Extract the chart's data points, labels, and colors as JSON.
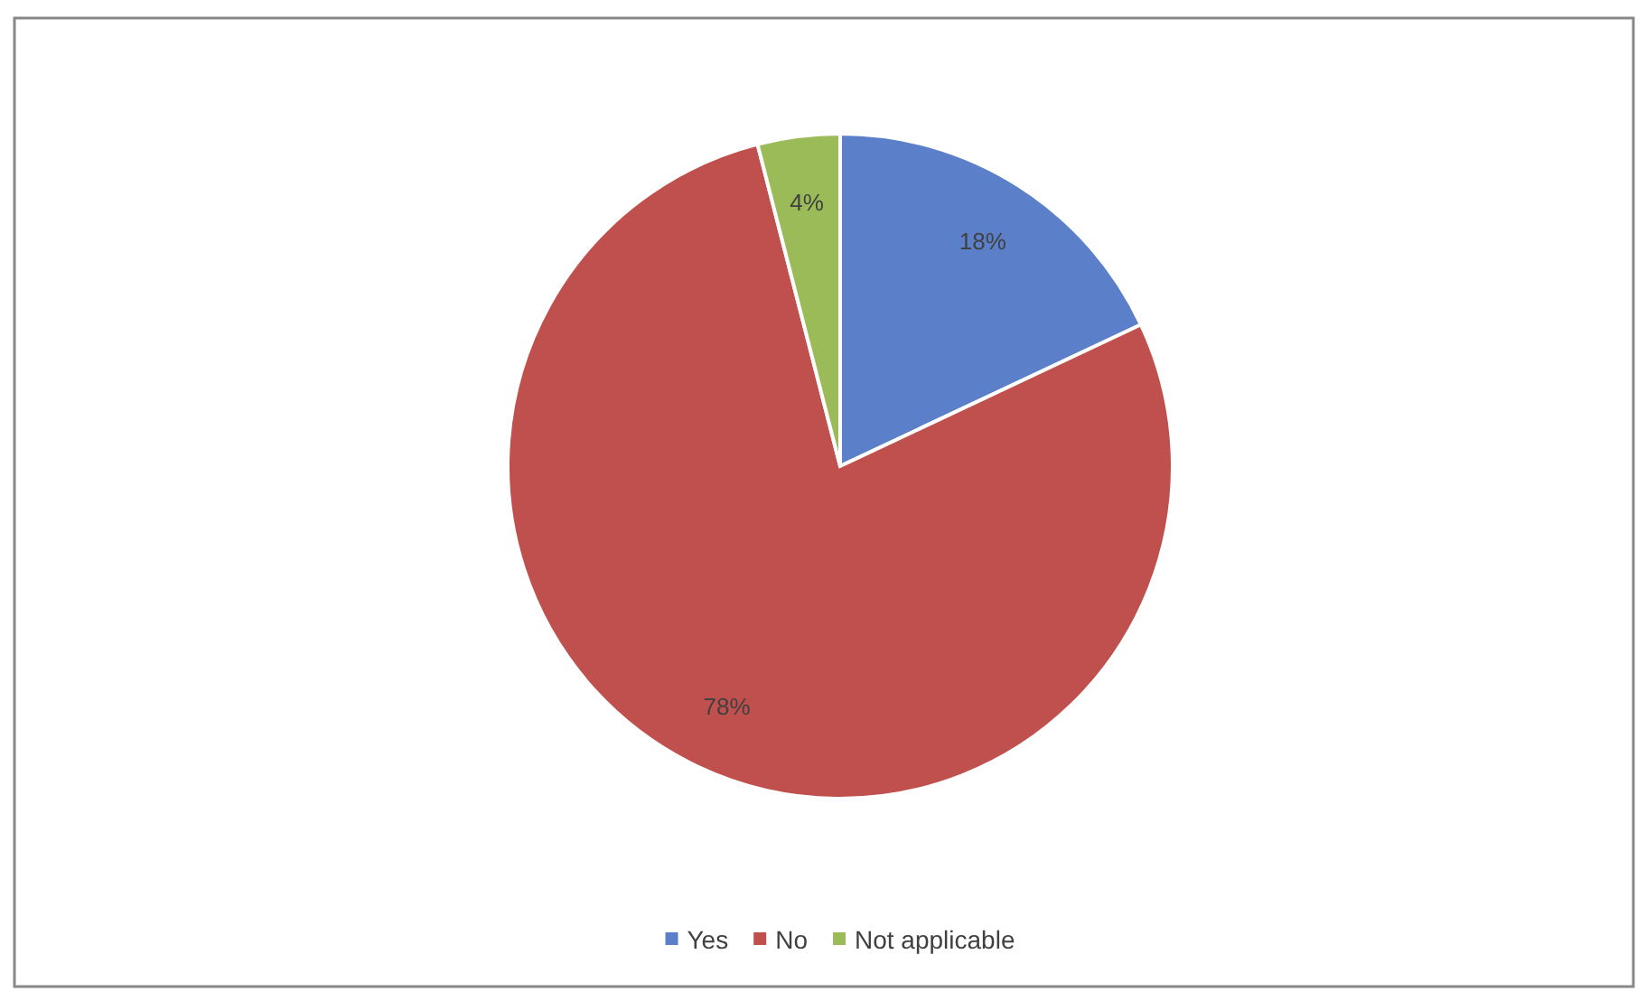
{
  "chart_data": {
    "type": "pie",
    "categories": [
      "Yes",
      "No",
      "Not applicable"
    ],
    "values": [
      18,
      78,
      4
    ],
    "colors": [
      "#5b7fc9",
      "#c0504d",
      "#9bbb59"
    ],
    "value_labels": [
      "18%",
      "78%",
      "4%"
    ],
    "legend": "bottom"
  }
}
